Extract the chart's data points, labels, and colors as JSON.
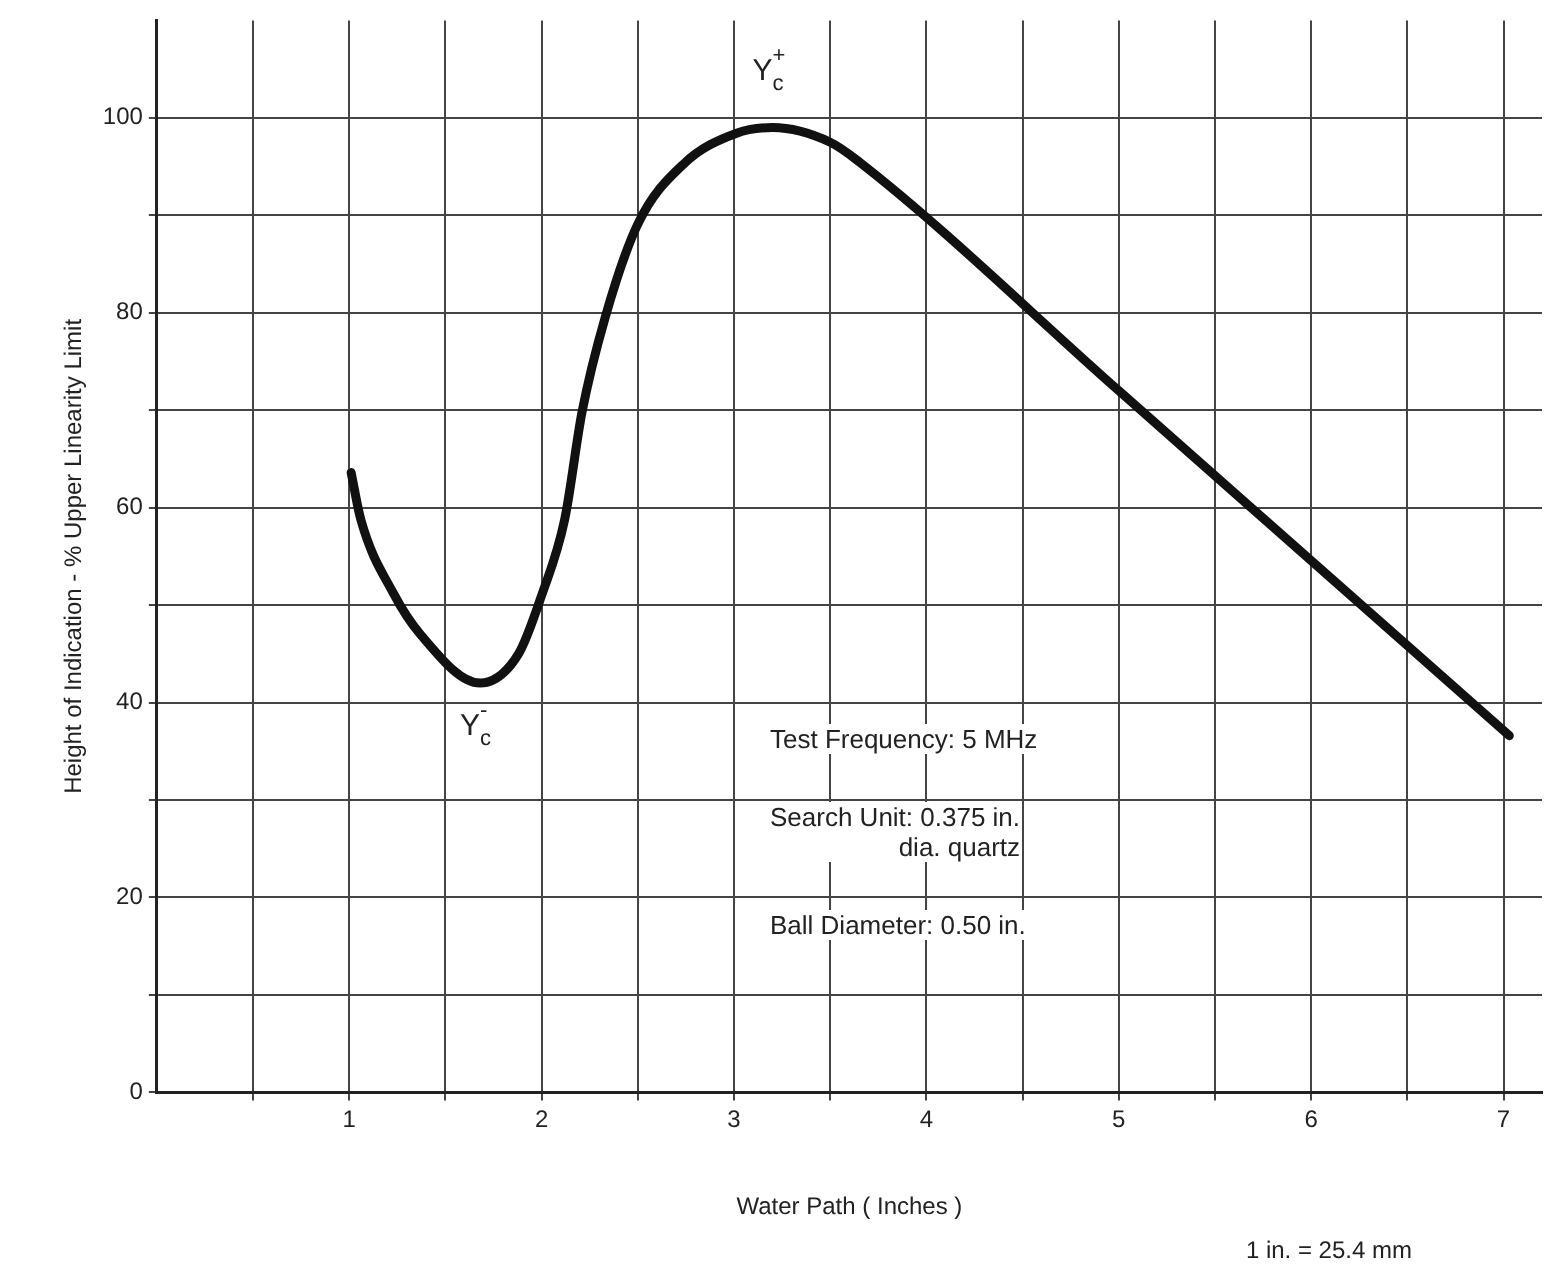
{
  "chart_data": {
    "type": "line",
    "xlabel": "Water Path ( Inches )",
    "ylabel": "Height of Indication - % Upper Linearity Limit",
    "x": [
      1.01,
      1.06,
      1.23,
      1.37,
      1.68,
      1.88,
      2.0,
      2.12,
      2.21,
      2.33,
      2.5,
      2.74,
      3.01,
      3.2,
      3.5,
      3.65,
      5.0,
      7.03
    ],
    "series": [
      {
        "color": "#111111",
        "values": [
          63.6,
          58.8,
          51.2,
          47,
          42,
          45,
          51,
          58.8,
          69.8,
          79.5,
          89.1,
          95.3,
          98.4,
          99,
          97.5,
          95.5,
          72,
          36.6
        ]
      }
    ],
    "xlim": [
      0,
      7.2
    ],
    "xticks": [
      {
        "value": 0.5,
        "label": null
      },
      1,
      {
        "value": 1.5,
        "label": null
      },
      2,
      {
        "value": 2.5,
        "label": null
      },
      3,
      {
        "value": 3.5,
        "label": null
      },
      4,
      {
        "value": 4.5,
        "label": null
      },
      5,
      {
        "value": 5.5,
        "label": null
      },
      6,
      {
        "value": 6.5,
        "label": null
      },
      7
    ],
    "ylim": [
      0,
      110
    ],
    "yticks": [
      0,
      {
        "value": 10,
        "label": null
      },
      20,
      {
        "value": 30,
        "label": null
      },
      40,
      {
        "value": 50,
        "label": null
      },
      60,
      {
        "value": 70,
        "label": null
      },
      80,
      {
        "value": 90,
        "label": null
      },
      100
    ],
    "grid": true,
    "marker": "none",
    "line_style": "solid",
    "annotations": [
      {
        "text": "Y$_{c}$$^{+}$",
        "x": 3.2,
        "y": 99
      },
      {
        "text": "Y$_{c}$$^{-}$",
        "x": 1.68,
        "y": 42
      },
      "Test Frequency: 5  MHz",
      "Search Unit: 0.375 in.\ndia. quartz",
      "Ball Diameter: 0.50 in.",
      "1 in. = 25.4 mm"
    ]
  }
}
